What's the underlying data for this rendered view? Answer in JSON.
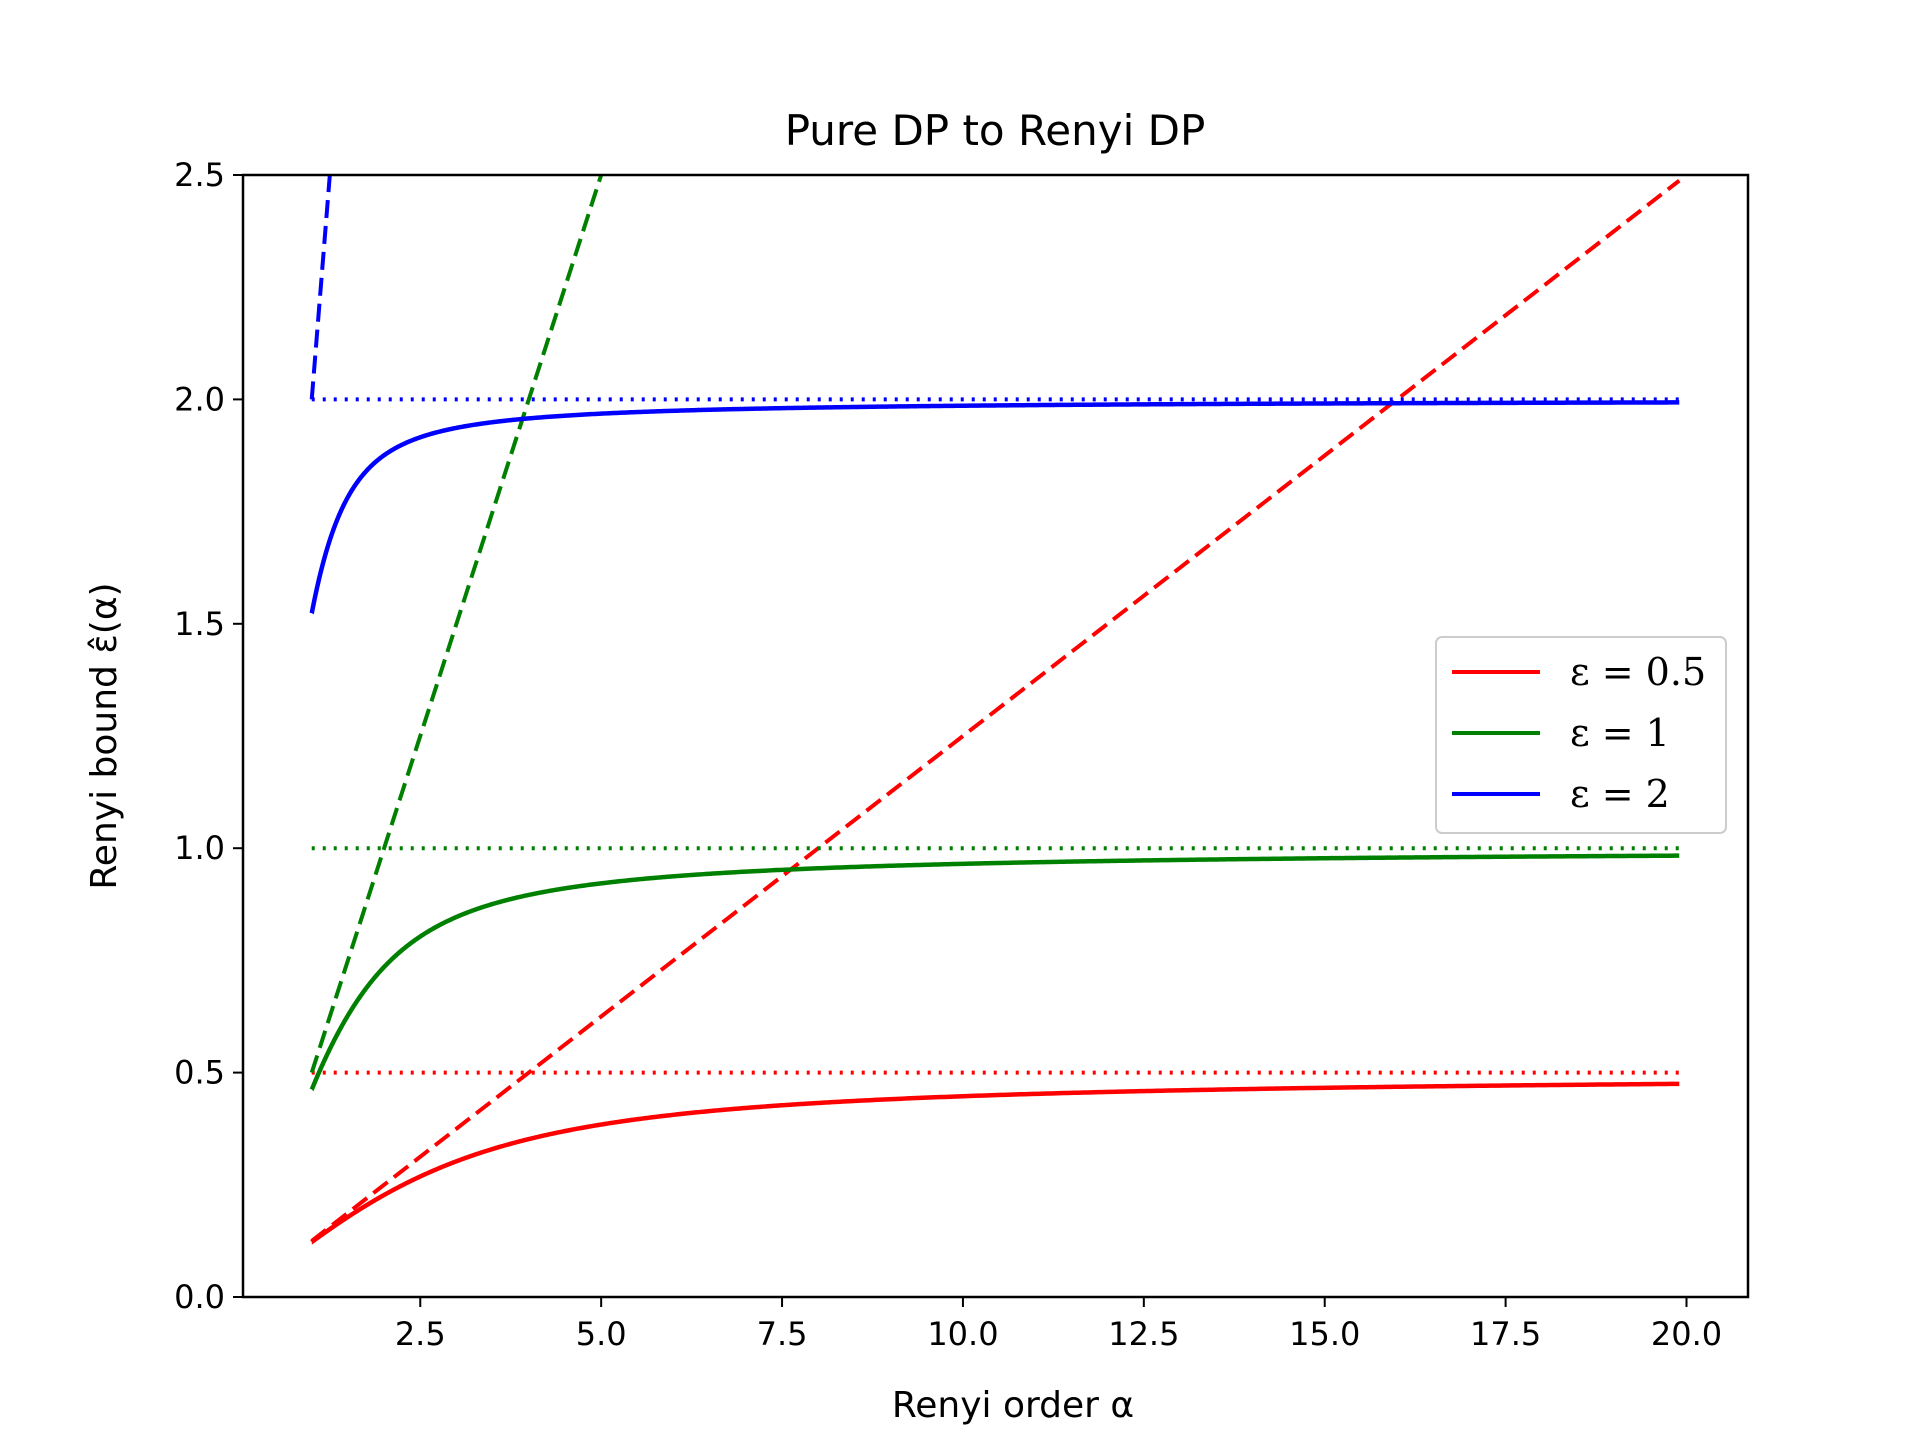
{
  "chart_data": {
    "type": "line",
    "title": "Pure DP to Renyi DP",
    "xlabel": "Renyi order α",
    "ylabel": "Renyi bound ε̂(α)",
    "xlim": [
      0.05,
      20.85
    ],
    "ylim": [
      0.0,
      2.5
    ],
    "xticks": [
      2.5,
      5.0,
      7.5,
      10.0,
      12.5,
      15.0,
      17.5,
      20.0
    ],
    "xtick_labels": [
      "2.5",
      "5.0",
      "7.5",
      "10.0",
      "12.5",
      "15.0",
      "17.5",
      "20.0"
    ],
    "yticks": [
      0.0,
      0.5,
      1.0,
      1.5,
      2.0,
      2.5
    ],
    "ytick_labels": [
      "0.0",
      "0.5",
      "1.0",
      "1.5",
      "2.0",
      "2.5"
    ],
    "x_range": [
      1.0,
      19.9
    ],
    "grid": false,
    "legend_position": "center-right",
    "series": [
      {
        "name": "ε = 0.5",
        "epsilon": 0.5,
        "color": "#ff0000"
      },
      {
        "name": "ε = 1",
        "epsilon": 1,
        "color": "#008000"
      },
      {
        "name": "ε = 2",
        "epsilon": 2,
        "color": "#0000ff"
      }
    ],
    "line_styles": {
      "solid": "Renyi bound ε̂(α)",
      "dashed": "α·ε²/2 bound",
      "dotted": "ε (pure DP)"
    }
  }
}
